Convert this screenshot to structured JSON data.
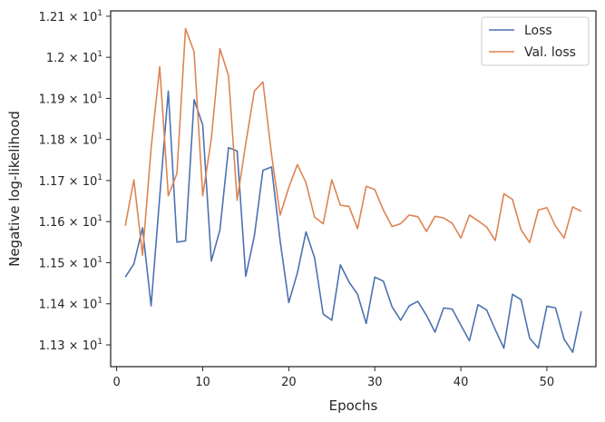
{
  "chart_data": {
    "type": "line",
    "xlabel": "Epochs",
    "ylabel": "Negative log-likelihood",
    "xlim": [
      -0.7,
      55.7
    ],
    "ylim": [
      11.247,
      12.113
    ],
    "x_ticks": [
      {
        "value": 0,
        "label": "0"
      },
      {
        "value": 10,
        "label": "10"
      },
      {
        "value": 20,
        "label": "20"
      },
      {
        "value": 30,
        "label": "30"
      },
      {
        "value": 40,
        "label": "40"
      },
      {
        "value": 50,
        "label": "50"
      }
    ],
    "y_ticks": [
      {
        "value": 11.3,
        "mantissa": "1.13",
        "base": "10",
        "exp": "1"
      },
      {
        "value": 11.4,
        "mantissa": "1.14",
        "base": "10",
        "exp": "1"
      },
      {
        "value": 11.5,
        "mantissa": "1.15",
        "base": "10",
        "exp": "1"
      },
      {
        "value": 11.6,
        "mantissa": "1.16",
        "base": "10",
        "exp": "1"
      },
      {
        "value": 11.7,
        "mantissa": "1.17",
        "base": "10",
        "exp": "1"
      },
      {
        "value": 11.8,
        "mantissa": "1.18",
        "base": "10",
        "exp": "1"
      },
      {
        "value": 11.9,
        "mantissa": "1.19",
        "base": "10",
        "exp": "1"
      },
      {
        "value": 12.0,
        "mantissa": "1.2",
        "base": "10",
        "exp": "1"
      },
      {
        "value": 12.1,
        "mantissa": "1.21",
        "base": "10",
        "exp": "1"
      }
    ],
    "legend_position": "top-right",
    "grid": false,
    "x": [
      1,
      2,
      3,
      4,
      5,
      6,
      7,
      8,
      9,
      10,
      11,
      12,
      13,
      14,
      15,
      16,
      17,
      18,
      19,
      20,
      21,
      22,
      23,
      24,
      25,
      26,
      27,
      28,
      29,
      30,
      31,
      32,
      33,
      34,
      35,
      36,
      37,
      38,
      39,
      40,
      41,
      42,
      43,
      44,
      45,
      46,
      47,
      48,
      49,
      50,
      51,
      52,
      53,
      54
    ],
    "series": [
      {
        "name": "Loss",
        "color": "#4c72b0",
        "values": [
          11.465,
          11.497,
          11.585,
          11.395,
          11.66,
          11.918,
          11.55,
          11.553,
          11.897,
          11.835,
          11.504,
          11.58,
          11.78,
          11.772,
          11.467,
          11.565,
          11.725,
          11.733,
          11.553,
          11.403,
          11.475,
          11.575,
          11.512,
          11.375,
          11.36,
          11.495,
          11.453,
          11.423,
          11.352,
          11.465,
          11.455,
          11.393,
          11.36,
          11.395,
          11.406,
          11.372,
          11.331,
          11.39,
          11.387,
          11.348,
          11.31,
          11.398,
          11.385,
          11.337,
          11.292,
          11.423,
          11.41,
          11.316,
          11.292,
          11.394,
          11.39,
          11.314,
          11.282,
          11.382
        ]
      },
      {
        "name": "Val. loss",
        "color": "#dd8452",
        "values": [
          11.59,
          11.702,
          11.518,
          11.778,
          11.977,
          11.663,
          11.717,
          12.07,
          12.013,
          11.663,
          11.802,
          12.021,
          11.955,
          11.652,
          11.79,
          11.918,
          11.94,
          11.763,
          11.616,
          11.683,
          11.739,
          11.695,
          11.611,
          11.595,
          11.702,
          11.64,
          11.637,
          11.583,
          11.686,
          11.678,
          11.628,
          11.588,
          11.595,
          11.616,
          11.612,
          11.576,
          11.613,
          11.609,
          11.596,
          11.56,
          11.616,
          11.602,
          11.587,
          11.554,
          11.668,
          11.654,
          11.58,
          11.549,
          11.628,
          11.634,
          11.589,
          11.56,
          11.636,
          11.625
        ]
      }
    ]
  }
}
